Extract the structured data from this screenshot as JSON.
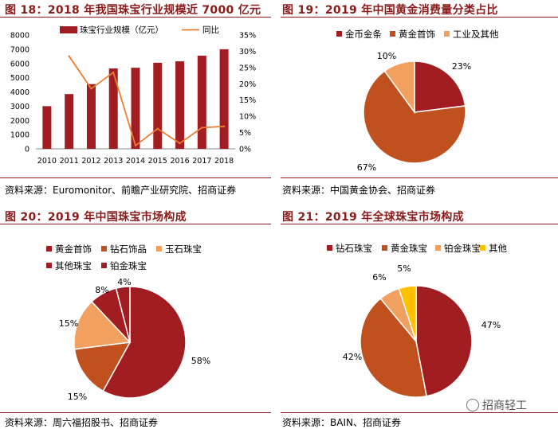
{
  "panels": [
    {
      "title": "图 18：2018 年我国珠宝行业规模近 7000 亿元",
      "source": "资料来源：Euromonitor、前瞻产业研究院、招商证券"
    },
    {
      "title": "图 19：2019 年中国黄金消费量分类占比",
      "source": "资料来源：中国黄金协会、招商证券"
    },
    {
      "title": "图 20：2019 年中国珠宝市场构成",
      "source": "资料来源：周六福招股书、招商证券"
    },
    {
      "title": "图 21：2019 年全球珠宝市场构成",
      "source": "资料来源：BAIN、招商证券"
    }
  ],
  "watermark": "招商轻工",
  "chart_data": [
    {
      "type": "bar",
      "categories": [
        "2010",
        "2011",
        "2012",
        "2013",
        "2014",
        "2015",
        "2016",
        "2017",
        "2018"
      ],
      "series": [
        {
          "name": "珠宝行业规模（亿元）",
          "type": "bar",
          "axis": "left",
          "color": "#a11d21",
          "values": [
            3000,
            3850,
            4550,
            5650,
            5700,
            6050,
            6150,
            6550,
            7000
          ]
        },
        {
          "name": "同比",
          "type": "line",
          "axis": "right",
          "color": "#ed7d31",
          "values": [
            null,
            28.5,
            18.5,
            23.5,
            1.0,
            6.2,
            1.7,
            6.5,
            6.9
          ]
        }
      ],
      "yticks": [
        "0",
        "1000",
        "2000",
        "3000",
        "4000",
        "5000",
        "6000",
        "7000",
        "8000"
      ],
      "y2ticks": [
        "0%",
        "5%",
        "10%",
        "15%",
        "20%",
        "25%",
        "30%",
        "35%"
      ],
      "ylim": [
        0,
        8000
      ],
      "y2lim": [
        0,
        35
      ],
      "legend": "top"
    },
    {
      "type": "pie",
      "labels": [
        "金币金条",
        "黄金首饰",
        "工业及其他"
      ],
      "values": [
        23,
        67,
        10
      ],
      "value_labels": [
        "23%",
        "67%",
        "10%"
      ],
      "colors": [
        "#a11d21",
        "#c0501e",
        "#f2a060"
      ],
      "legend": "top"
    },
    {
      "type": "pie",
      "labels": [
        "黄金首饰",
        "钻石饰品",
        "玉石珠宝",
        "其他珠宝",
        "铂金珠宝"
      ],
      "values": [
        58,
        15,
        15,
        8,
        4
      ],
      "value_labels": [
        "58%",
        "15%",
        "15%",
        "8%",
        "4%"
      ],
      "colors": [
        "#a11d21",
        "#c0501e",
        "#f2a060",
        "#a11d21",
        "#a11d21"
      ],
      "legend": "top-left"
    },
    {
      "type": "pie",
      "labels": [
        "钻石珠宝",
        "黄金珠宝",
        "铂金珠宝",
        "其他"
      ],
      "values": [
        47,
        42,
        6,
        5
      ],
      "value_labels": [
        "47%",
        "42%",
        "6%",
        "5%"
      ],
      "colors": [
        "#a11d21",
        "#c0501e",
        "#f2a060",
        "#ffc000"
      ],
      "legend": "top"
    }
  ]
}
